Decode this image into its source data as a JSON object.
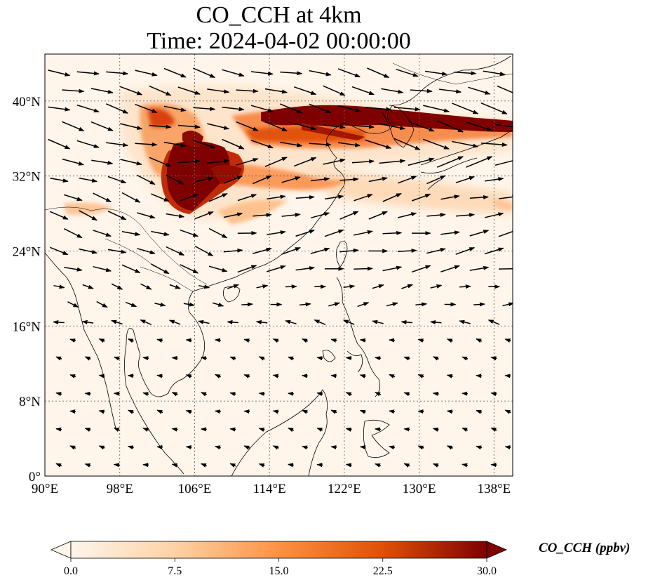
{
  "title": {
    "line1": "CO_CCH at 4km",
    "line2": "Time: 2024-04-02 00:00:00"
  },
  "map": {
    "lon_range": [
      90,
      140
    ],
    "lat_range": [
      0,
      45
    ],
    "lon_ticks": [
      {
        "value": 90,
        "label": "90°E"
      },
      {
        "value": 98,
        "label": "98°E"
      },
      {
        "value": 106,
        "label": "106°E"
      },
      {
        "value": 114,
        "label": "114°E"
      },
      {
        "value": 122,
        "label": "122°E"
      },
      {
        "value": 130,
        "label": "130°E"
      },
      {
        "value": 138,
        "label": "138°E"
      }
    ],
    "lat_ticks": [
      {
        "value": 0,
        "label": "0°"
      },
      {
        "value": 8,
        "label": "8°N"
      },
      {
        "value": 16,
        "label": "16°N"
      },
      {
        "value": 24,
        "label": "24°N"
      },
      {
        "value": 32,
        "label": "32°N"
      },
      {
        "value": 40,
        "label": "40°N"
      }
    ],
    "grid": "dotted"
  },
  "colorbar": {
    "label": "CO_CCH (ppbv)",
    "ticks": [
      "0.0",
      "7.5",
      "15.0",
      "22.5",
      "30.0"
    ],
    "range": [
      0,
      30
    ],
    "colors": [
      "#fff5eb",
      "#fdd2a5",
      "#fd9243",
      "#df5005",
      "#7f0000"
    ],
    "extend": "both"
  }
}
